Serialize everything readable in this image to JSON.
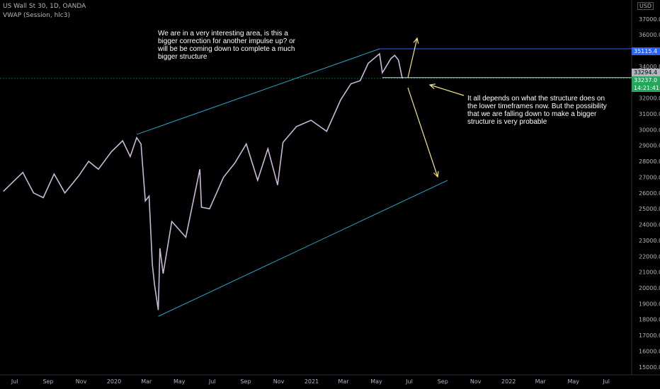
{
  "header": {
    "symbol_line": "US Wall St 30, 1D, OANDA",
    "indicator_line": "VWAP (Session, hlc3)",
    "currency": "USD"
  },
  "annotations": {
    "top_note": "We are in a very interesting area, is this a bigger correction for another impulse up? or will be be coming down to complete a much bigger structure",
    "right_note": "It all depends on what the structure does on the lower timeframes now. But the possibility that we are falling down to make a bigger structure is very probable"
  },
  "price_tags": {
    "resistance": "35115.4",
    "vwap": "33294.4",
    "last_price": "33237.0",
    "countdown": "14:21:41"
  },
  "colors": {
    "background": "#000000",
    "channel": "#26a6c9",
    "horizontal": "#2962ff",
    "arrow": "#f5e58a",
    "tag_blue": "#2962ff",
    "tag_green": "#26a65b",
    "candle": "#c9b8d8"
  },
  "chart_data": {
    "type": "line",
    "title": "US Wall St 30, 1D, OANDA",
    "x_ticks": [
      "Jul",
      "Sep",
      "Nov",
      "2020",
      "Mar",
      "May",
      "Jul",
      "Sep",
      "Nov",
      "2021",
      "Mar",
      "May",
      "Jul",
      "Sep",
      "Nov",
      "2022",
      "Mar",
      "May",
      "Jul"
    ],
    "y_ticks": [
      "15000.0",
      "16000.0",
      "17000.0",
      "18000.0",
      "19000.0",
      "20000.0",
      "21000.0",
      "22000.0",
      "23000.0",
      "24000.0",
      "25000.0",
      "26000.0",
      "27000.0",
      "28000.0",
      "29000.0",
      "30000.0",
      "31000.0",
      "32000.0",
      "33000.0",
      "34000.0",
      "35000.0",
      "36000.0",
      "37000.0"
    ],
    "ylim": [
      14500,
      38200
    ],
    "series": [
      {
        "points": [
          [
            "2019-06-10",
            26100
          ],
          [
            "2019-07-01",
            26800
          ],
          [
            "2019-07-16",
            27300
          ],
          [
            "2019-08-05",
            26000
          ],
          [
            "2019-08-23",
            25700
          ],
          [
            "2019-09-12",
            27200
          ],
          [
            "2019-10-02",
            26000
          ],
          [
            "2019-10-28",
            27100
          ],
          [
            "2019-11-15",
            28000
          ],
          [
            "2019-12-03",
            27500
          ],
          [
            "2019-12-27",
            28600
          ],
          [
            "2020-01-17",
            29300
          ],
          [
            "2020-01-31",
            28300
          ],
          [
            "2020-02-12",
            29500
          ],
          [
            "2020-02-20",
            29100
          ],
          [
            "2020-02-28",
            25500
          ],
          [
            "2020-03-06",
            25800
          ],
          [
            "2020-03-12",
            21500
          ],
          [
            "2020-03-16",
            20200
          ],
          [
            "2020-03-23",
            18600
          ],
          [
            "2020-03-26",
            22500
          ],
          [
            "2020-04-01",
            20900
          ],
          [
            "2020-04-17",
            24200
          ],
          [
            "2020-05-13",
            23200
          ],
          [
            "2020-06-08",
            27500
          ],
          [
            "2020-06-11",
            25100
          ],
          [
            "2020-06-26",
            25000
          ],
          [
            "2020-07-22",
            27000
          ],
          [
            "2020-08-12",
            27900
          ],
          [
            "2020-09-02",
            29100
          ],
          [
            "2020-09-23",
            26800
          ],
          [
            "2020-10-12",
            28800
          ],
          [
            "2020-10-30",
            26500
          ],
          [
            "2020-11-09",
            29200
          ],
          [
            "2020-12-04",
            30200
          ],
          [
            "2020-12-31",
            30600
          ],
          [
            "2021-01-29",
            29900
          ],
          [
            "2021-02-24",
            31900
          ],
          [
            "2021-03-15",
            32900
          ],
          [
            "2021-04-01",
            33100
          ],
          [
            "2021-04-16",
            34200
          ],
          [
            "2021-05-07",
            34800
          ],
          [
            "2021-05-12",
            33600
          ],
          [
            "2021-05-28",
            34500
          ],
          [
            "2021-06-04",
            34700
          ],
          [
            "2021-06-11",
            34400
          ],
          [
            "2021-06-18",
            33237
          ]
        ]
      }
    ],
    "lines": [
      {
        "kind": "channel_upper",
        "from": [
          "2020-02-12",
          29700
        ],
        "to": [
          "2021-05-07",
          35115
        ]
      },
      {
        "kind": "channel_lower",
        "from": [
          "2020-03-23",
          18200
        ],
        "to": [
          "2021-09-10",
          26800
        ]
      },
      {
        "kind": "resistance",
        "value": 35115.4
      },
      {
        "kind": "support",
        "from_date": "2021-05-12",
        "value": 33294.4
      }
    ]
  }
}
